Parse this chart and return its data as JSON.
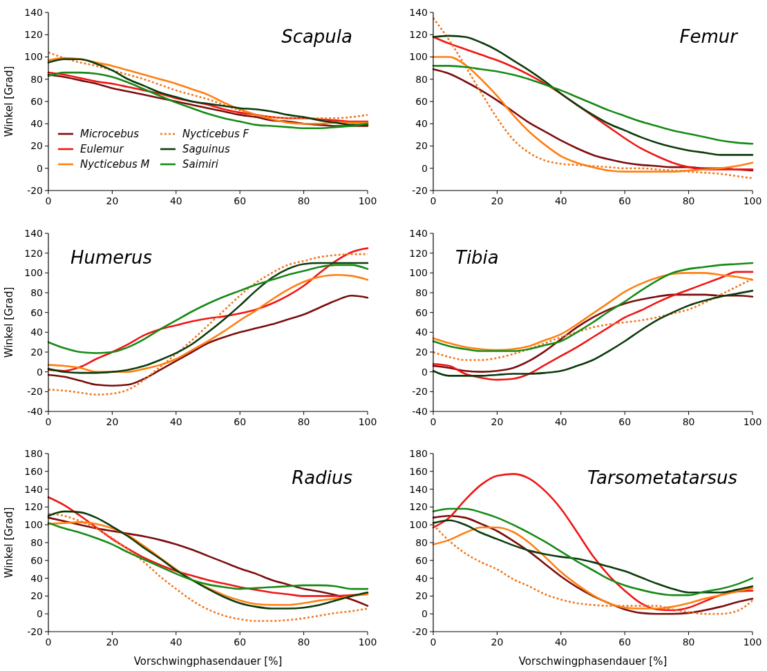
{
  "chart_data": [
    {
      "type": "line",
      "title": "Scapula",
      "ylabel": "Winkel [Grad]",
      "x": [
        0,
        5,
        10,
        15,
        20,
        25,
        30,
        35,
        40,
        45,
        50,
        55,
        60,
        65,
        70,
        75,
        80,
        85,
        90,
        95,
        100
      ],
      "xlim": [
        0,
        100
      ],
      "xticks": [
        0,
        20,
        40,
        60,
        80,
        100
      ],
      "ylim": [
        -20,
        140
      ],
      "yticks": [
        -20,
        0,
        20,
        40,
        60,
        80,
        100,
        120,
        140
      ],
      "grid": false,
      "legend": "bottom left",
      "marker": "none",
      "series": [
        {
          "name": "Microcebus",
          "color": "#7b0c0c",
          "line_style": "solid",
          "values": [
            84,
            82,
            79,
            76,
            72,
            69,
            66,
            63,
            60,
            57,
            54,
            51,
            48,
            46,
            43,
            42,
            40,
            39,
            38,
            38,
            38
          ]
        },
        {
          "name": "Eulemur",
          "color": "#f01414",
          "line_style": "solid",
          "values": [
            86,
            84,
            81,
            78,
            76,
            73,
            70,
            67,
            63,
            60,
            57,
            53,
            50,
            48,
            46,
            45,
            45,
            44,
            43,
            42,
            42
          ]
        },
        {
          "name": "Nycticebus M",
          "color": "#ff7f0f",
          "line_style": "solid",
          "values": [
            97,
            99,
            98,
            95,
            92,
            88,
            84,
            80,
            76,
            71,
            66,
            59,
            53,
            48,
            44,
            41,
            40,
            40,
            41,
            41,
            41
          ]
        },
        {
          "name": "Nycticebus F",
          "color": "#f07820",
          "line_style": "dotted",
          "values": [
            104,
            99,
            95,
            92,
            88,
            84,
            80,
            75,
            70,
            66,
            62,
            57,
            52,
            48,
            46,
            45,
            45,
            45,
            45,
            46,
            48
          ]
        },
        {
          "name": "Saguinus",
          "color": "#0b3a0b",
          "line_style": "solid",
          "values": [
            95,
            98,
            98,
            94,
            88,
            80,
            74,
            68,
            64,
            60,
            58,
            56,
            54,
            53,
            51,
            48,
            46,
            43,
            41,
            39,
            39
          ]
        },
        {
          "name": "Saimiri",
          "color": "#158a15",
          "line_style": "solid",
          "values": [
            83,
            86,
            86,
            85,
            82,
            77,
            71,
            65,
            59,
            54,
            49,
            45,
            42,
            39,
            38,
            37,
            36,
            36,
            37,
            38,
            40
          ]
        }
      ]
    },
    {
      "type": "line",
      "title": "Femur",
      "x": [
        0,
        5,
        10,
        15,
        20,
        25,
        30,
        35,
        40,
        45,
        50,
        55,
        60,
        65,
        70,
        75,
        80,
        85,
        90,
        95,
        100
      ],
      "xlim": [
        0,
        100
      ],
      "xticks": [
        0,
        20,
        40,
        60,
        80,
        100
      ],
      "ylim": [
        -20,
        140
      ],
      "yticks": [
        -20,
        0,
        20,
        40,
        60,
        80,
        100,
        120,
        140
      ],
      "grid": false,
      "marker": "none",
      "series": [
        {
          "color": "#7b0c0c",
          "line_style": "solid",
          "values": [
            89,
            85,
            78,
            70,
            61,
            51,
            41,
            33,
            25,
            18,
            12,
            8,
            5,
            3,
            2,
            1,
            1,
            0,
            0,
            -1,
            -2
          ]
        },
        {
          "color": "#f01414",
          "line_style": "solid",
          "values": [
            118,
            112,
            107,
            102,
            97,
            91,
            84,
            76,
            67,
            57,
            47,
            37,
            27,
            18,
            11,
            5,
            1,
            -1,
            -1,
            -1,
            -1
          ]
        },
        {
          "color": "#ff7f0f",
          "line_style": "solid",
          "values": [
            100,
            100,
            93,
            80,
            65,
            48,
            33,
            21,
            11,
            5,
            1,
            -2,
            -3,
            -3,
            -3,
            -3,
            -2,
            -1,
            0,
            2,
            5
          ]
        },
        {
          "color": "#f07820",
          "line_style": "dotted",
          "values": [
            135,
            115,
            92,
            68,
            45,
            26,
            14,
            7,
            4,
            3,
            2,
            1,
            0,
            0,
            -1,
            -2,
            -3,
            -4,
            -5,
            -7,
            -9
          ]
        },
        {
          "color": "#0b3a0b",
          "line_style": "solid",
          "values": [
            118,
            119,
            118,
            113,
            106,
            97,
            88,
            78,
            67,
            57,
            48,
            40,
            34,
            28,
            23,
            19,
            16,
            14,
            12,
            12,
            12
          ]
        },
        {
          "color": "#158a15",
          "line_style": "solid",
          "values": [
            92,
            92,
            91,
            89,
            87,
            84,
            80,
            75,
            70,
            64,
            58,
            52,
            47,
            42,
            38,
            34,
            31,
            28,
            25,
            23,
            22
          ]
        }
      ]
    },
    {
      "type": "line",
      "title": "Humerus",
      "ylabel": "Winkel [Grad]",
      "x": [
        0,
        5,
        10,
        15,
        20,
        25,
        30,
        35,
        40,
        45,
        50,
        55,
        60,
        65,
        70,
        75,
        80,
        85,
        90,
        95,
        100
      ],
      "xlim": [
        0,
        100
      ],
      "xticks": [
        0,
        20,
        40,
        60,
        80,
        100
      ],
      "ylim": [
        -40,
        140
      ],
      "yticks": [
        -40,
        -20,
        0,
        20,
        40,
        60,
        80,
        100,
        120,
        140
      ],
      "grid": false,
      "marker": "none",
      "series": [
        {
          "color": "#7b0c0c",
          "line_style": "solid",
          "values": [
            -3,
            -5,
            -9,
            -13,
            -14,
            -13,
            -7,
            2,
            11,
            20,
            29,
            35,
            40,
            44,
            48,
            53,
            58,
            65,
            72,
            77,
            75
          ]
        },
        {
          "color": "#f01414",
          "line_style": "solid",
          "values": [
            2,
            1,
            5,
            13,
            20,
            28,
            37,
            43,
            47,
            51,
            54,
            56,
            59,
            63,
            69,
            77,
            87,
            100,
            112,
            121,
            125
          ]
        },
        {
          "color": "#ff7f0f",
          "line_style": "solid",
          "values": [
            7,
            6,
            4,
            0,
            0,
            0,
            3,
            7,
            13,
            22,
            31,
            41,
            52,
            62,
            73,
            83,
            91,
            96,
            98,
            97,
            93
          ]
        },
        {
          "color": "#f07820",
          "line_style": "dotted",
          "values": [
            -18,
            -19,
            -21,
            -23,
            -22,
            -18,
            -8,
            5,
            18,
            32,
            47,
            62,
            77,
            90,
            100,
            108,
            112,
            116,
            118,
            119,
            119
          ]
        },
        {
          "color": "#0b3a0b",
          "line_style": "solid",
          "values": [
            3,
            0,
            -1,
            -1,
            0,
            2,
            6,
            12,
            19,
            28,
            40,
            53,
            67,
            82,
            95,
            104,
            109,
            110,
            110,
            110,
            110
          ]
        },
        {
          "color": "#158a15",
          "line_style": "solid",
          "values": [
            30,
            24,
            20,
            19,
            20,
            25,
            33,
            43,
            52,
            61,
            69,
            76,
            82,
            88,
            93,
            98,
            102,
            106,
            108,
            108,
            104
          ]
        }
      ]
    },
    {
      "type": "line",
      "title": "Tibia",
      "x": [
        0,
        5,
        10,
        15,
        20,
        25,
        30,
        35,
        40,
        45,
        50,
        55,
        60,
        65,
        70,
        75,
        80,
        85,
        90,
        95,
        100
      ],
      "xlim": [
        0,
        100
      ],
      "xticks": [
        0,
        20,
        40,
        60,
        80,
        100
      ],
      "ylim": [
        -40,
        140
      ],
      "yticks": [
        -40,
        -20,
        0,
        20,
        40,
        60,
        80,
        100,
        120,
        140
      ],
      "grid": false,
      "marker": "none",
      "series": [
        {
          "color": "#7b0c0c",
          "line_style": "solid",
          "values": [
            6,
            4,
            1,
            0,
            1,
            4,
            11,
            21,
            33,
            45,
            55,
            63,
            69,
            73,
            76,
            78,
            78,
            78,
            77,
            77,
            76
          ]
        },
        {
          "color": "#f01414",
          "line_style": "solid",
          "values": [
            8,
            6,
            -2,
            -6,
            -8,
            -7,
            -2,
            7,
            16,
            25,
            35,
            45,
            55,
            62,
            70,
            77,
            83,
            89,
            95,
            101,
            101
          ]
        },
        {
          "color": "#ff7f0f",
          "line_style": "solid",
          "values": [
            34,
            29,
            25,
            23,
            22,
            23,
            26,
            32,
            38,
            48,
            59,
            70,
            81,
            89,
            95,
            99,
            100,
            100,
            98,
            96,
            93
          ]
        },
        {
          "color": "#f07820",
          "line_style": "dotted",
          "values": [
            20,
            15,
            12,
            12,
            14,
            18,
            23,
            29,
            35,
            40,
            45,
            48,
            50,
            52,
            55,
            59,
            63,
            70,
            78,
            86,
            94
          ]
        },
        {
          "color": "#0b3a0b",
          "line_style": "solid",
          "values": [
            1,
            -4,
            -4,
            -4,
            -3,
            -2,
            -2,
            -1,
            1,
            6,
            12,
            21,
            31,
            42,
            52,
            60,
            67,
            72,
            76,
            79,
            82
          ]
        },
        {
          "color": "#158a15",
          "line_style": "solid",
          "values": [
            31,
            26,
            23,
            21,
            21,
            21,
            23,
            27,
            31,
            40,
            50,
            61,
            71,
            82,
            92,
            100,
            104,
            106,
            108,
            109,
            110
          ]
        }
      ]
    },
    {
      "type": "line",
      "title": "Radius",
      "xlabel": "Vorschwingphasendauer [%]",
      "ylabel": "Winkel [Grad]",
      "x": [
        0,
        5,
        10,
        15,
        20,
        25,
        30,
        35,
        40,
        45,
        50,
        55,
        60,
        65,
        70,
        75,
        80,
        85,
        90,
        95,
        100
      ],
      "xlim": [
        0,
        100
      ],
      "xticks": [
        0,
        20,
        40,
        60,
        80,
        100
      ],
      "ylim": [
        -20,
        180
      ],
      "yticks": [
        -20,
        0,
        20,
        40,
        60,
        80,
        100,
        120,
        140,
        160,
        180
      ],
      "grid": false,
      "marker": "none",
      "series": [
        {
          "color": "#7b0c0c",
          "line_style": "solid",
          "values": [
            108,
            104,
            100,
            96,
            93,
            90,
            87,
            83,
            78,
            72,
            65,
            58,
            51,
            45,
            38,
            33,
            28,
            25,
            21,
            16,
            9
          ]
        },
        {
          "color": "#f01414",
          "line_style": "solid",
          "values": [
            131,
            122,
            110,
            97,
            84,
            73,
            63,
            55,
            48,
            43,
            38,
            34,
            30,
            27,
            24,
            22,
            20,
            20,
            20,
            21,
            22
          ]
        },
        {
          "color": "#ff7f0f",
          "line_style": "solid",
          "values": [
            101,
            102,
            103,
            101,
            96,
            88,
            76,
            63,
            50,
            38,
            29,
            21,
            15,
            11,
            10,
            10,
            12,
            15,
            17,
            20,
            22
          ]
        },
        {
          "color": "#f07820",
          "line_style": "dotted",
          "values": [
            112,
            110,
            104,
            96,
            85,
            72,
            58,
            42,
            28,
            15,
            5,
            -2,
            -6,
            -8,
            -8,
            -7,
            -5,
            -2,
            1,
            3,
            6
          ]
        },
        {
          "color": "#0b3a0b",
          "line_style": "solid",
          "values": [
            110,
            115,
            114,
            108,
            98,
            87,
            74,
            62,
            49,
            38,
            28,
            19,
            12,
            8,
            6,
            6,
            7,
            10,
            15,
            20,
            24
          ]
        },
        {
          "color": "#158a15",
          "line_style": "solid",
          "values": [
            102,
            96,
            91,
            85,
            78,
            69,
            61,
            53,
            45,
            38,
            33,
            30,
            28,
            29,
            30,
            31,
            32,
            32,
            31,
            28,
            28
          ]
        }
      ]
    },
    {
      "type": "line",
      "title": "Tarsometatarsus",
      "xlabel": "Vorschwingphasendauer [%]",
      "x": [
        0,
        5,
        10,
        15,
        20,
        25,
        30,
        35,
        40,
        45,
        50,
        55,
        60,
        65,
        70,
        75,
        80,
        85,
        90,
        95,
        100
      ],
      "xlim": [
        0,
        100
      ],
      "xticks": [
        0,
        20,
        40,
        60,
        80,
        100
      ],
      "ylim": [
        -20,
        180
      ],
      "yticks": [
        -20,
        0,
        20,
        40,
        60,
        80,
        100,
        120,
        140,
        160,
        180
      ],
      "grid": false,
      "marker": "none",
      "series": [
        {
          "color": "#7b0c0c",
          "line_style": "solid",
          "values": [
            108,
            110,
            108,
            101,
            93,
            82,
            70,
            56,
            42,
            30,
            20,
            12,
            5,
            1,
            0,
            0,
            1,
            4,
            8,
            13,
            17
          ]
        },
        {
          "color": "#f01414",
          "line_style": "solid",
          "values": [
            97,
            108,
            128,
            145,
            155,
            157,
            152,
            138,
            118,
            92,
            65,
            43,
            26,
            12,
            5,
            4,
            7,
            14,
            21,
            25,
            26
          ]
        },
        {
          "color": "#ff7f0f",
          "line_style": "solid",
          "values": [
            78,
            83,
            91,
            97,
            97,
            92,
            80,
            64,
            47,
            33,
            21,
            12,
            7,
            6,
            6,
            8,
            12,
            17,
            21,
            25,
            29
          ]
        },
        {
          "color": "#f07820",
          "line_style": "dotted",
          "values": [
            100,
            82,
            68,
            58,
            50,
            39,
            31,
            22,
            16,
            12,
            10,
            9,
            9,
            9,
            9,
            5,
            2,
            0,
            0,
            3,
            15
          ]
        },
        {
          "color": "#0b3a0b",
          "line_style": "solid",
          "values": [
            102,
            105,
            100,
            91,
            84,
            77,
            71,
            67,
            64,
            62,
            58,
            53,
            48,
            41,
            34,
            28,
            24,
            24,
            24,
            27,
            31
          ]
        },
        {
          "color": "#158a15",
          "line_style": "solid",
          "values": [
            115,
            118,
            118,
            114,
            108,
            100,
            91,
            81,
            70,
            59,
            49,
            39,
            32,
            27,
            23,
            21,
            21,
            25,
            28,
            33,
            40
          ]
        }
      ]
    }
  ]
}
